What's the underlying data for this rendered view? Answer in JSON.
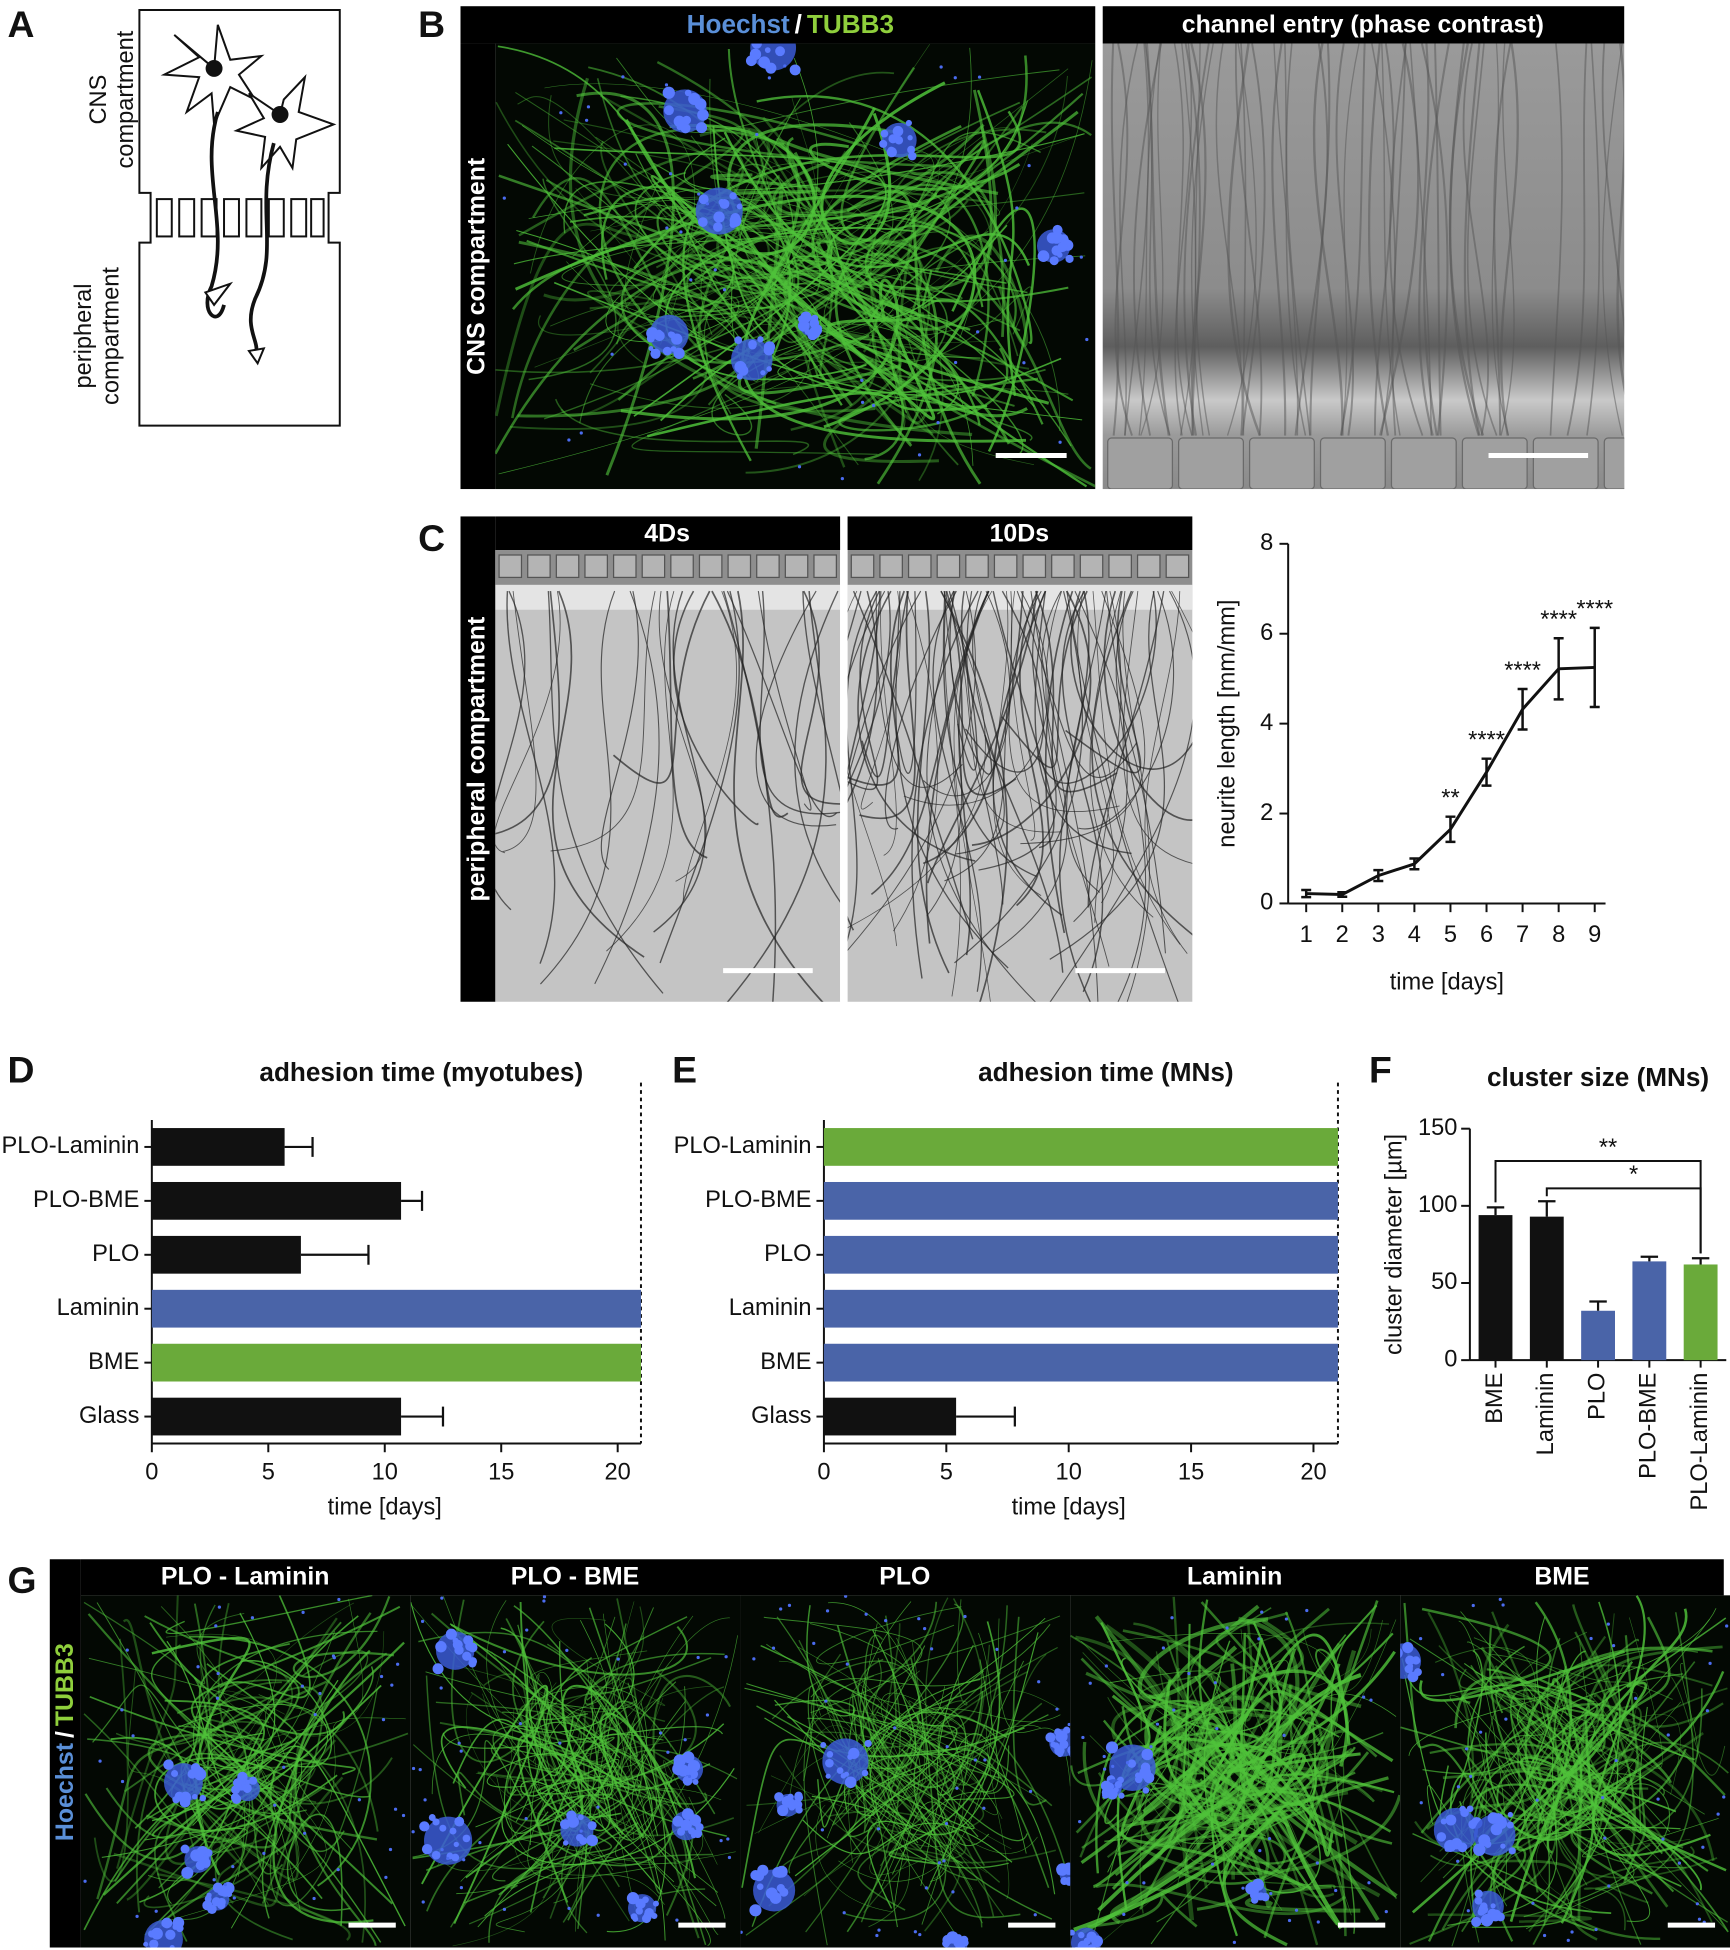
{
  "figure": {
    "panel_letters": [
      "A",
      "B",
      "C",
      "D",
      "E",
      "F",
      "G"
    ],
    "A": {
      "top_label": [
        "CNS",
        "compartment"
      ],
      "bottom_label": [
        "peripheral",
        "compartment"
      ]
    },
    "B": {
      "stain": [
        "Hoechst",
        "/",
        "TUBB3"
      ],
      "side_label": "CNS compartment",
      "phase_title": "channel entry (phase contrast)"
    },
    "C": {
      "titles": [
        "4Ds",
        "10Ds"
      ],
      "side_label": "peripheral compartment"
    },
    "G": {
      "titles": [
        "PLO - Laminin",
        "PLO - BME",
        "PLO",
        "Laminin",
        "BME"
      ],
      "stain": [
        "Hoechst",
        "/",
        "TUBB3"
      ]
    }
  },
  "chart_data": [
    {
      "type": "line",
      "x": [
        1,
        2,
        3,
        4,
        5,
        6,
        7,
        8,
        9
      ],
      "values": [
        0.22,
        0.2,
        0.62,
        0.88,
        1.65,
        2.92,
        4.32,
        5.22,
        5.25
      ],
      "errors": [
        0.08,
        0.05,
        0.12,
        0.12,
        0.28,
        0.3,
        0.45,
        0.68,
        0.88
      ],
      "xlim": [
        0.5,
        9.3
      ],
      "ylim": [
        0,
        8
      ],
      "xticks": [
        1,
        2,
        3,
        4,
        5,
        6,
        7,
        8,
        9
      ],
      "yticks": [
        0,
        2,
        4,
        6,
        8
      ],
      "xlabel": "time [days]",
      "ylabel": "neurite length [mm/mm]",
      "color": "#111111",
      "annotations": [
        {
          "x": 5,
          "label": "**"
        },
        {
          "x": 6,
          "label": "****"
        },
        {
          "x": 7,
          "label": "****"
        },
        {
          "x": 8,
          "label": "****"
        },
        {
          "x": 9,
          "label": "****"
        }
      ]
    },
    {
      "type": "bar",
      "orientation": "horizontal",
      "title": "adhesion time (myotubes)",
      "categories": [
        "PLO-Laminin",
        "PLO-BME",
        "PLO",
        "Laminin",
        "BME",
        "Glass"
      ],
      "values": [
        5.7,
        10.7,
        6.4,
        21,
        21,
        10.7
      ],
      "errors": [
        1.2,
        0.9,
        2.9,
        null,
        null,
        1.8
      ],
      "colors": [
        "#111111",
        "#111111",
        "#111111",
        "#4a64a8",
        "#6aaa3a",
        "#111111"
      ],
      "xlim": [
        0,
        21
      ],
      "xticks": [
        0,
        5,
        10,
        15,
        20
      ],
      "xlabel": "time [days]"
    },
    {
      "type": "bar",
      "orientation": "horizontal",
      "title": "adhesion time (MNs)",
      "categories": [
        "PLO-Laminin",
        "PLO-BME",
        "PLO",
        "Laminin",
        "BME",
        "Glass"
      ],
      "values": [
        21,
        21,
        21,
        21,
        21,
        5.4
      ],
      "errors": [
        null,
        null,
        null,
        null,
        null,
        2.4
      ],
      "colors": [
        "#6aaa3a",
        "#4a64a8",
        "#4a64a8",
        "#4a64a8",
        "#4a64a8",
        "#111111"
      ],
      "xlim": [
        0,
        21
      ],
      "xticks": [
        0,
        5,
        10,
        15,
        20
      ],
      "xlabel": "time [days]"
    },
    {
      "type": "bar",
      "orientation": "vertical",
      "title": "cluster size (MNs)",
      "categories": [
        "BME",
        "Laminin",
        "PLO",
        "PLO-BME",
        "PLO-Laminin"
      ],
      "values": [
        94,
        93,
        32,
        64,
        62
      ],
      "errors": [
        5,
        10,
        6,
        3,
        4
      ],
      "colors": [
        "#111111",
        "#111111",
        "#4a64a8",
        "#4a64a8",
        "#6aaa3a"
      ],
      "ylim": [
        0,
        150
      ],
      "yticks": [
        0,
        50,
        100,
        150
      ],
      "ylabel": "cluster diameter [µm]",
      "significance": [
        {
          "from": "BME",
          "to": "PLO-Laminin",
          "label": "**"
        },
        {
          "from": "Laminin",
          "to": "PLO-Laminin",
          "label": "*"
        }
      ]
    }
  ]
}
